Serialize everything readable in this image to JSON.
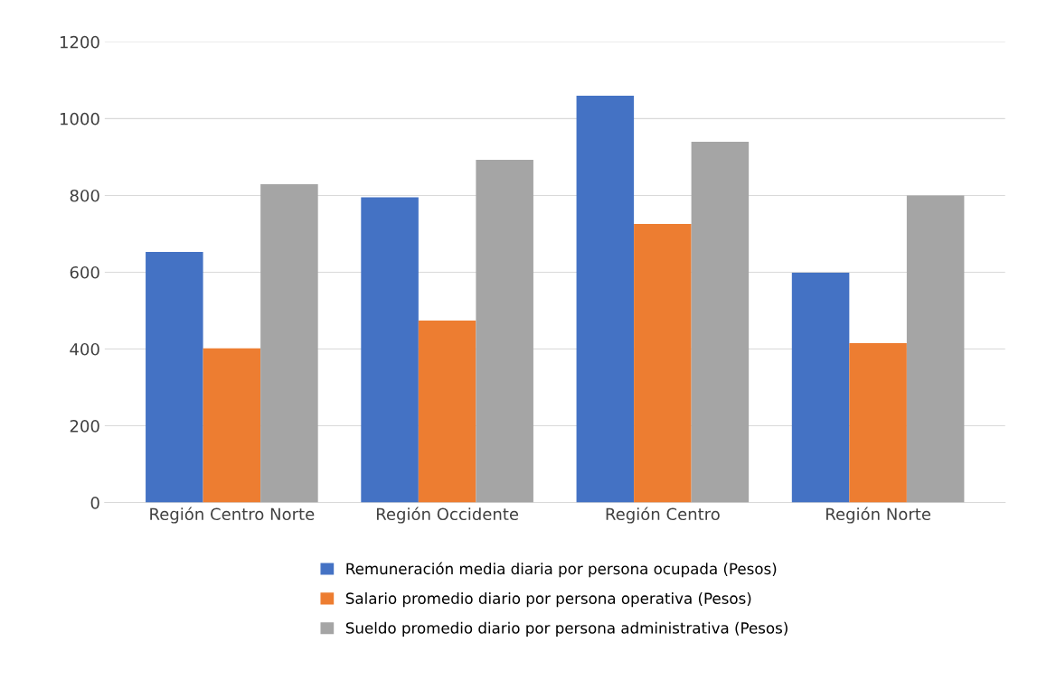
{
  "chart_data": {
    "type": "bar",
    "categories": [
      "Región Centro Norte",
      "Región Occidente",
      "Región Centro",
      "Región Norte"
    ],
    "series": [
      {
        "name": "Remuneración media diaria por persona ocupada (Pesos)",
        "color": "#4472c4",
        "values": [
          653,
          795,
          1060,
          599
        ]
      },
      {
        "name": "Salario promedio diario por persona operativa (Pesos)",
        "color": "#ed7d31",
        "values": [
          402,
          474,
          726,
          415
        ]
      },
      {
        "name": "Sueldo promedio diario por persona administrativa (Pesos)",
        "color": "#a5a5a5",
        "values": [
          829,
          893,
          940,
          800
        ]
      }
    ],
    "ylim": [
      0,
      1200
    ],
    "yticks": [
      0,
      200,
      400,
      600,
      800,
      1000,
      1200
    ],
    "grid": "y",
    "legend": "bottom"
  }
}
